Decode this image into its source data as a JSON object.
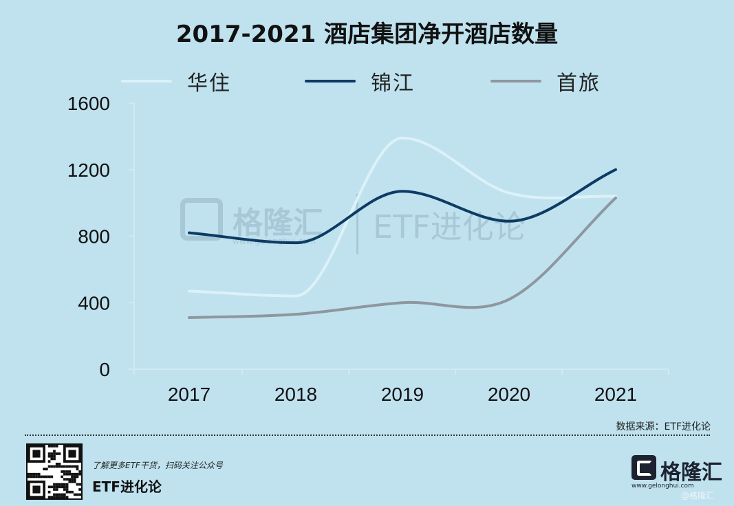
{
  "chart_data": {
    "type": "line",
    "title": "2017-2021 酒店集团净开酒店数量",
    "categories": [
      "2017",
      "2018",
      "2019",
      "2020",
      "2021"
    ],
    "ylim": [
      0,
      1600
    ],
    "yticks": [
      0,
      400,
      800,
      1200,
      1600
    ],
    "grid": false,
    "legend_position": "top",
    "series": [
      {
        "name": "华住",
        "values": [
          470,
          440,
          1390,
          1060,
          1040
        ],
        "color": "#dcf1f8"
      },
      {
        "name": "锦江",
        "values": [
          820,
          760,
          1070,
          890,
          1200
        ],
        "color": "#0d3b63"
      },
      {
        "name": "首旅",
        "values": [
          310,
          330,
          400,
          420,
          1030
        ],
        "color": "#8e979f"
      }
    ]
  },
  "watermark": {
    "brand": "格隆汇",
    "domain": "www.gelonghui.com",
    "channel": "ETF进化论"
  },
  "source_text": "数据来源：ETF进化论",
  "footer": {
    "promo_text": "了解更多ETF干货，扫码关注公众号",
    "account_name": "ETF进化论",
    "brand_name": "格隆汇",
    "brand_domain": "www.gelonghui.com",
    "brand_tag": "@格隆汇"
  },
  "colors": {
    "background": "#bfe2ee",
    "axis": "#cfeaf3"
  }
}
